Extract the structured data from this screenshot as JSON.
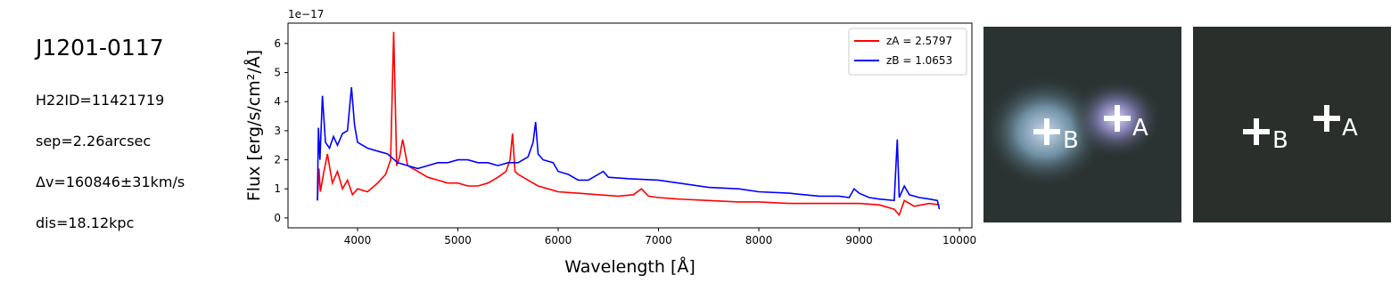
{
  "info": {
    "title": "J1201-0117",
    "lines": [
      "H22ID=11421719",
      "sep=2.26arcsec",
      "Δv=160846±31km/s",
      "dis=18.12kpc"
    ]
  },
  "chart_data": {
    "type": "line",
    "xlabel": "Wavelength [Å]",
    "ylabel": "Flux [erg/s/cm²/Å]",
    "offset_label": "1e−17",
    "xlim": [
      3307,
      10124
    ],
    "ylim": [
      -0.34,
      6.7
    ],
    "xticks": [
      4000,
      5000,
      6000,
      7000,
      8000,
      9000,
      10000
    ],
    "yticks": [
      0,
      1,
      2,
      3,
      4,
      5,
      6
    ],
    "legend": "upper right",
    "series": [
      {
        "name": "zA = 2.5797",
        "color": "#ff0000",
        "x": [
          3600,
          3615,
          3630,
          3660,
          3700,
          3750,
          3800,
          3850,
          3900,
          3950,
          4000,
          4100,
          4200,
          4280,
          4330,
          4360,
          4390,
          4420,
          4450,
          4500,
          4600,
          4700,
          4800,
          4900,
          5000,
          5100,
          5200,
          5300,
          5400,
          5480,
          5520,
          5545,
          5570,
          5600,
          5700,
          5800,
          5900,
          6000,
          6200,
          6400,
          6600,
          6750,
          6830,
          6900,
          7000,
          7200,
          7500,
          7800,
          8000,
          8300,
          8600,
          9000,
          9200,
          9350,
          9400,
          9450,
          9550,
          9700,
          9800
        ],
        "values": [
          0.6,
          1.7,
          0.9,
          1.5,
          2.2,
          1.2,
          1.6,
          1.0,
          1.3,
          0.8,
          1.0,
          0.9,
          1.2,
          1.5,
          2.0,
          6.4,
          1.8,
          2.1,
          2.7,
          1.8,
          1.6,
          1.4,
          1.3,
          1.2,
          1.2,
          1.1,
          1.1,
          1.2,
          1.4,
          1.6,
          2.0,
          2.9,
          1.6,
          1.5,
          1.3,
          1.1,
          1.0,
          0.9,
          0.85,
          0.8,
          0.75,
          0.8,
          1.0,
          0.75,
          0.7,
          0.65,
          0.6,
          0.55,
          0.55,
          0.5,
          0.5,
          0.5,
          0.45,
          0.3,
          0.1,
          0.6,
          0.4,
          0.5,
          0.45
        ]
      },
      {
        "name": "zB = 1.0653",
        "color": "#0000ff",
        "x": [
          3600,
          3610,
          3625,
          3650,
          3680,
          3720,
          3760,
          3800,
          3850,
          3900,
          3940,
          3970,
          4000,
          4100,
          4200,
          4300,
          4400,
          4500,
          4600,
          4700,
          4800,
          4900,
          5000,
          5100,
          5200,
          5300,
          5400,
          5500,
          5600,
          5700,
          5750,
          5775,
          5800,
          5850,
          5950,
          6000,
          6100,
          6200,
          6300,
          6450,
          6500,
          6700,
          7000,
          7200,
          7500,
          7800,
          8000,
          8300,
          8600,
          8800,
          8900,
          8950,
          9000,
          9100,
          9200,
          9350,
          9380,
          9400,
          9450,
          9500,
          9600,
          9700,
          9780,
          9800
        ],
        "values": [
          0.6,
          3.1,
          2.0,
          4.2,
          2.6,
          2.4,
          2.8,
          2.5,
          2.9,
          3.0,
          4.5,
          3.2,
          2.6,
          2.4,
          2.3,
          2.2,
          1.9,
          1.8,
          1.7,
          1.8,
          1.9,
          1.9,
          2.0,
          2.0,
          1.9,
          1.9,
          1.8,
          1.9,
          1.9,
          2.1,
          2.6,
          3.3,
          2.2,
          2.0,
          1.9,
          1.6,
          1.5,
          1.3,
          1.3,
          1.6,
          1.4,
          1.35,
          1.3,
          1.2,
          1.05,
          1.0,
          0.9,
          0.85,
          0.75,
          0.75,
          0.7,
          1.0,
          0.85,
          0.7,
          0.65,
          0.6,
          2.7,
          0.7,
          1.1,
          0.8,
          0.7,
          0.65,
          0.6,
          0.3
        ]
      }
    ]
  },
  "images": [
    {
      "labels": [
        "A",
        "B"
      ]
    },
    {
      "labels": [
        "A",
        "B"
      ]
    }
  ]
}
